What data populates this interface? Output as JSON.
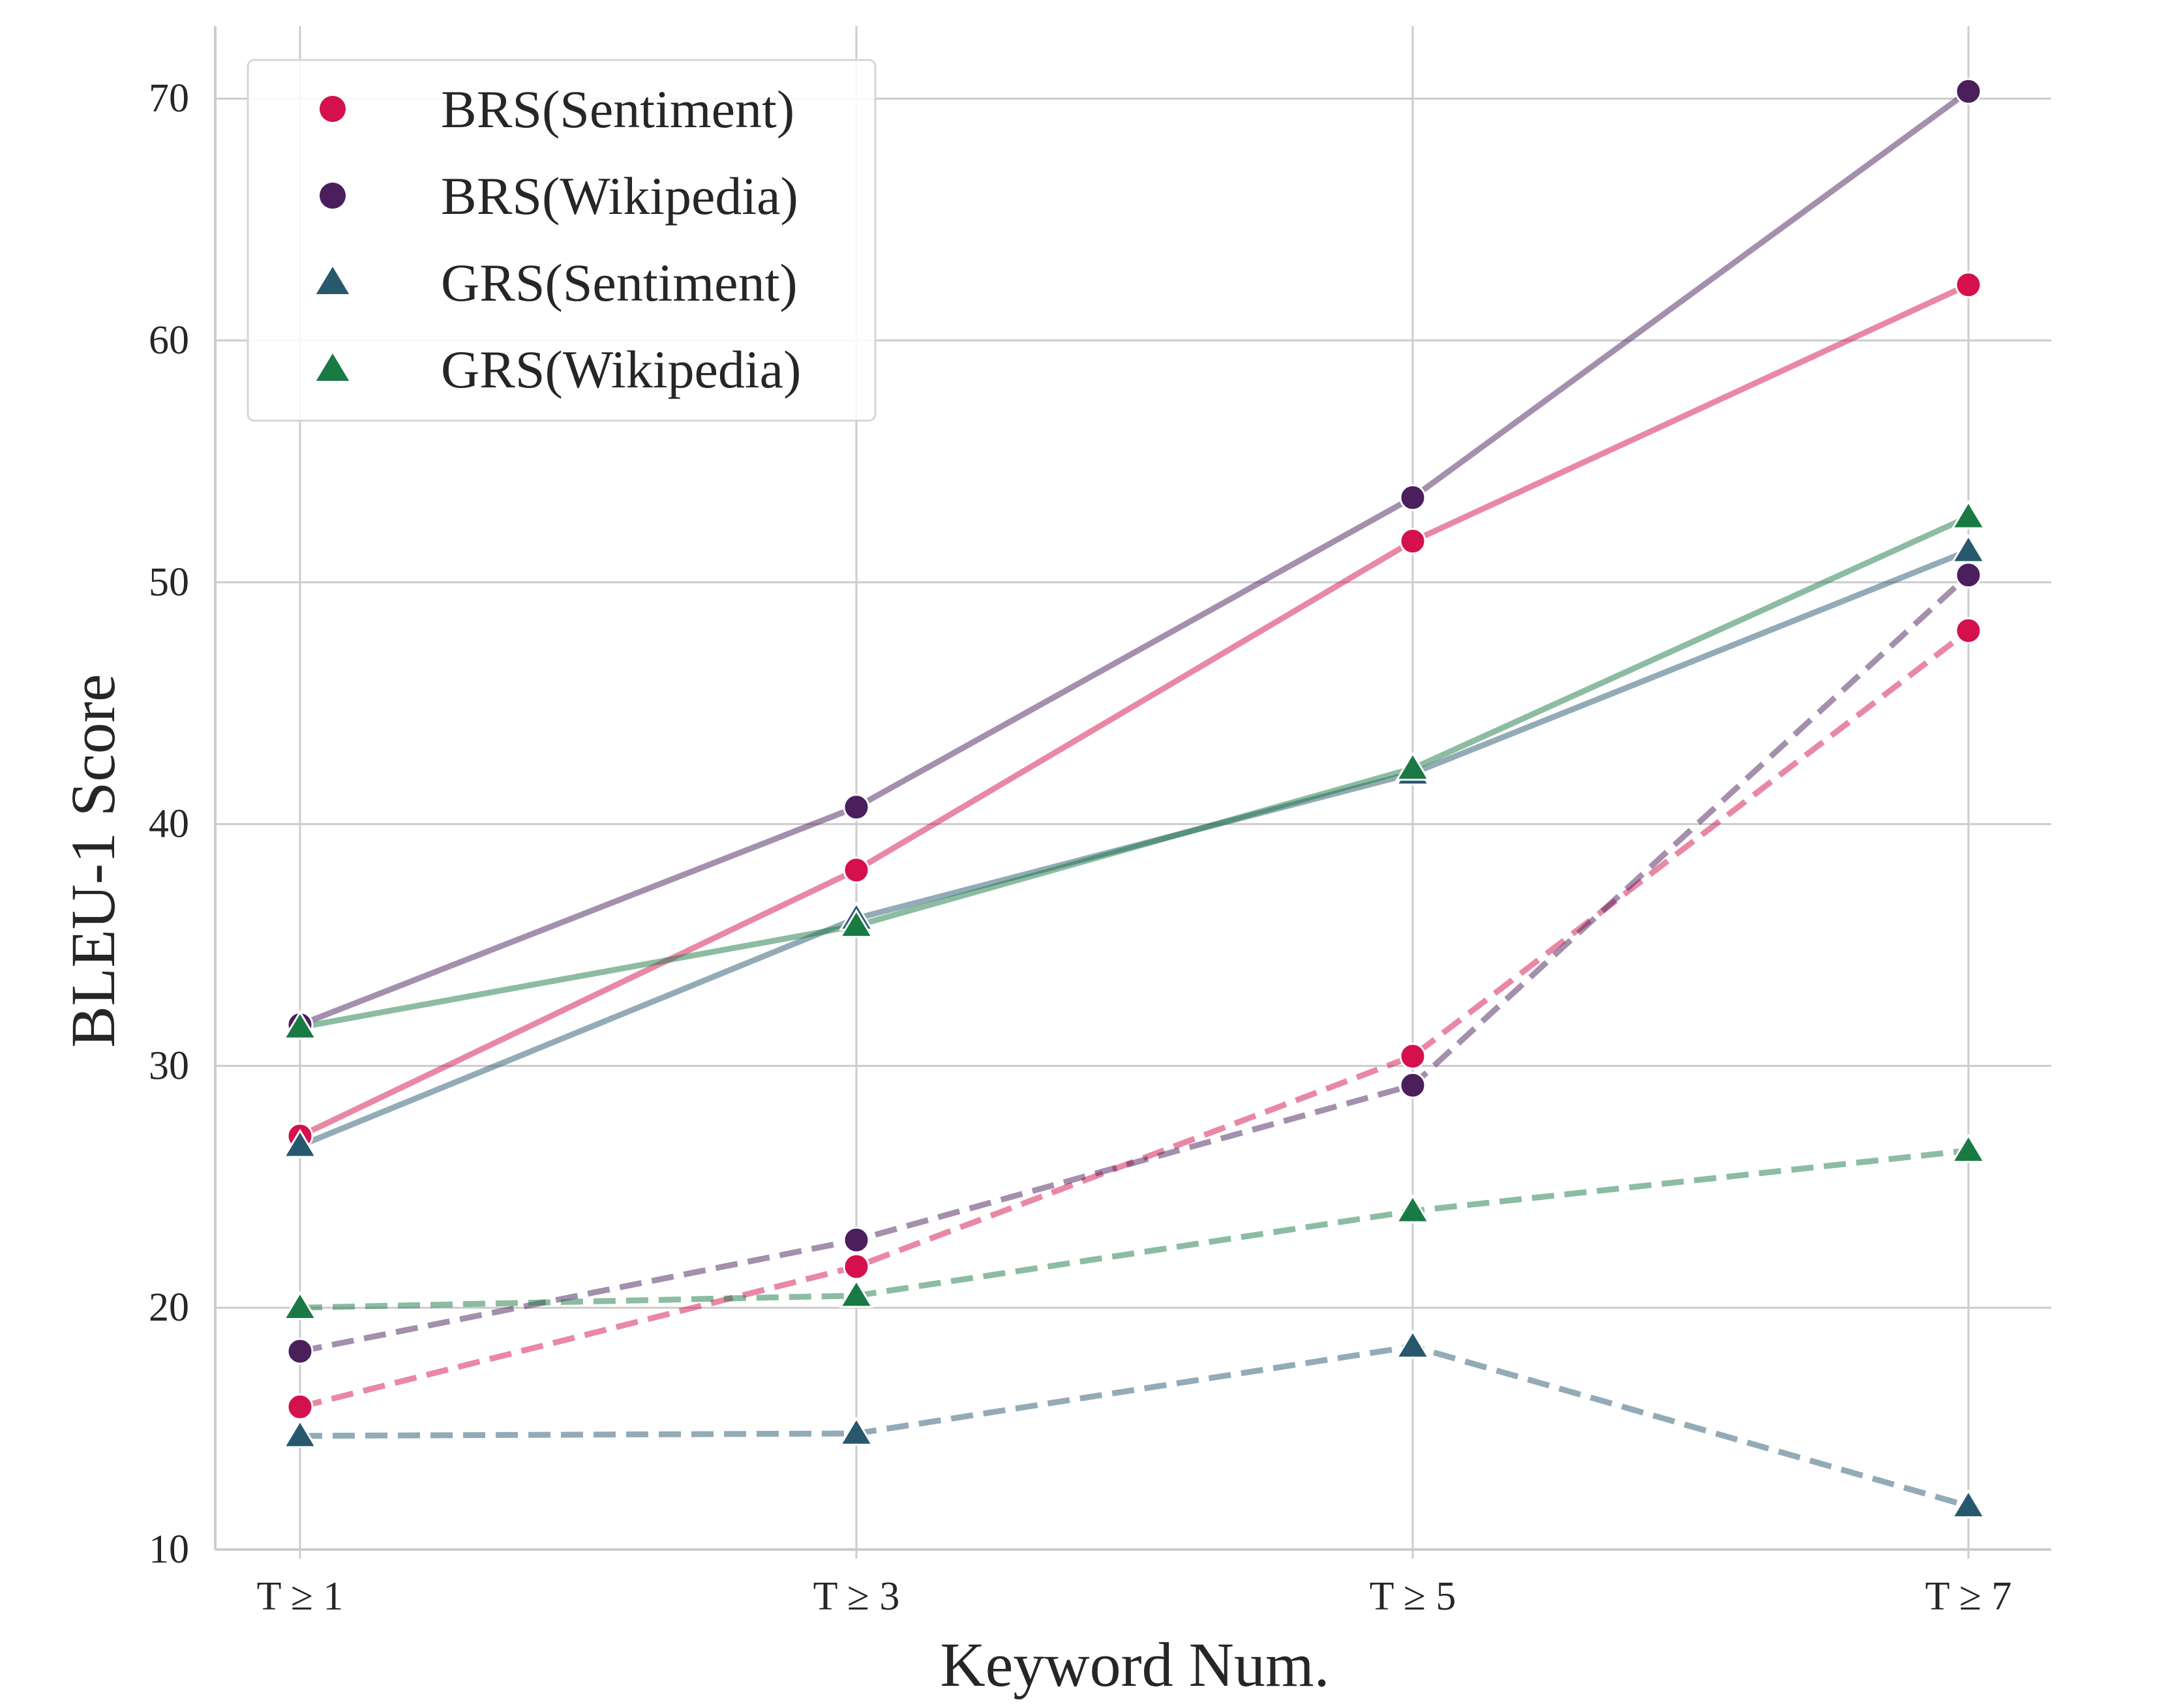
{
  "chart_data": {
    "type": "line",
    "title": "",
    "xlabel": "Keyword Num.",
    "ylabel": "BLEU-1 Score",
    "categories": [
      "T ≥ 1",
      "T ≥ 3",
      "T ≥ 5",
      "T ≥ 7"
    ],
    "ylim": [
      10,
      73
    ],
    "yticks": [
      10,
      20,
      30,
      40,
      50,
      60,
      70
    ],
    "grid": true,
    "legend_position": "top-left",
    "legend": [
      {
        "label": "BRS(Sentiment)",
        "marker": "circle",
        "color": "#d4114c"
      },
      {
        "label": "BRS(Wikipedia)",
        "marker": "circle",
        "color": "#4a1f5c"
      },
      {
        "label": "GRS(Sentiment)",
        "marker": "triangle",
        "color": "#28586e"
      },
      {
        "label": "GRS(Wikipedia)",
        "marker": "triangle",
        "color": "#1a7a43"
      }
    ],
    "series": [
      {
        "name": "BRS(Sentiment)",
        "style": "solid",
        "marker": "circle",
        "color": "#d4114c",
        "values": [
          27.1,
          38.1,
          51.7,
          62.3
        ]
      },
      {
        "name": "BRS(Wikipedia)",
        "style": "solid",
        "marker": "circle",
        "color": "#4a1f5c",
        "values": [
          31.7,
          40.7,
          53.5,
          70.3
        ]
      },
      {
        "name": "GRS(Sentiment)",
        "style": "solid",
        "marker": "triangle",
        "color": "#28586e",
        "values": [
          26.7,
          36.1,
          42.1,
          51.3
        ]
      },
      {
        "name": "GRS(Wikipedia)",
        "style": "solid",
        "marker": "triangle",
        "color": "#1a7a43",
        "values": [
          31.6,
          35.8,
          42.3,
          52.7
        ]
      },
      {
        "name": "BRS(Sentiment) dashed",
        "style": "dashed",
        "marker": "circle",
        "color": "#d4114c",
        "values": [
          15.9,
          21.7,
          30.4,
          48.0
        ]
      },
      {
        "name": "BRS(Wikipedia) dashed",
        "style": "dashed",
        "marker": "circle",
        "color": "#4a1f5c",
        "values": [
          18.2,
          22.8,
          29.2,
          50.3
        ]
      },
      {
        "name": "GRS(Sentiment) dashed",
        "style": "dashed",
        "marker": "triangle",
        "color": "#28586e",
        "values": [
          14.7,
          14.8,
          18.4,
          11.8
        ]
      },
      {
        "name": "GRS(Wikipedia) dashed",
        "style": "dashed",
        "marker": "triangle",
        "color": "#1a7a43",
        "values": [
          20.0,
          20.5,
          24.0,
          26.5
        ]
      }
    ]
  }
}
